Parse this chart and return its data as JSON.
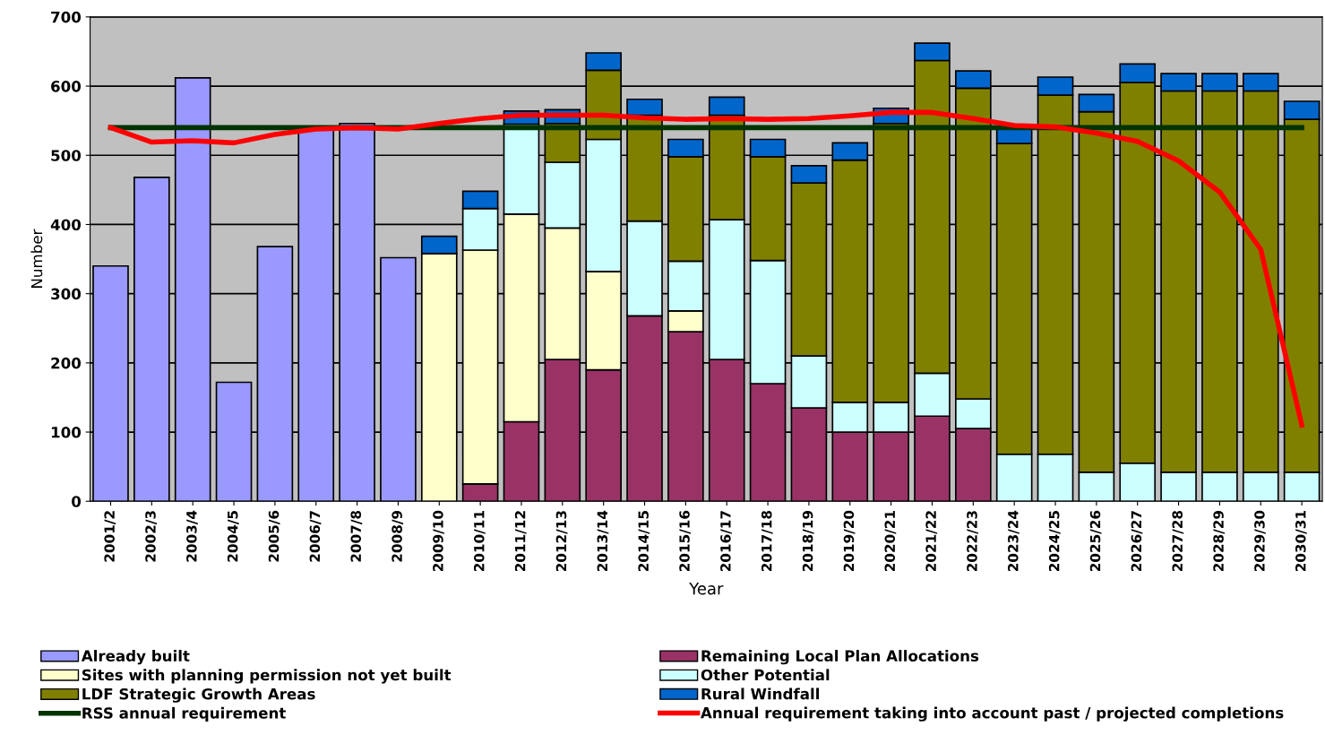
{
  "chart_data": {
    "type": "bar",
    "stacked": true,
    "xlabel": "Year",
    "ylabel": "Number",
    "categories": [
      "2001/2",
      "2002/3",
      "2003/4",
      "2004/5",
      "2005/6",
      "2006/7",
      "2007/8",
      "2008/9",
      "2009/10",
      "2010/11",
      "2011/12",
      "2012/13",
      "2013/14",
      "2014/15",
      "2015/16",
      "2016/17",
      "2017/18",
      "2018/19",
      "2019/20",
      "2020/21",
      "2021/22",
      "2022/23",
      "2023/24",
      "2024/25",
      "2025/26",
      "2026/27",
      "2027/28",
      "2028/29",
      "2029/30",
      "2030/31"
    ],
    "series": [
      {
        "name": "Already built",
        "color": "#9999ff",
        "values": [
          340,
          468,
          612,
          172,
          368,
          539,
          546,
          352,
          null,
          null,
          null,
          null,
          null,
          null,
          null,
          null,
          null,
          null,
          null,
          null,
          null,
          null,
          null,
          null,
          null,
          null,
          null,
          null,
          null,
          null
        ]
      },
      {
        "name": "Remaining Local Plan Allocations",
        "color": "#993366",
        "values": [
          null,
          null,
          null,
          null,
          null,
          null,
          null,
          null,
          null,
          25,
          115,
          205,
          190,
          268,
          245,
          205,
          170,
          135,
          100,
          100,
          123,
          105,
          null,
          null,
          null,
          null,
          null,
          null,
          null,
          null
        ]
      },
      {
        "name": "Sites with planning permission not yet built",
        "color": "#ffffcc",
        "values": [
          null,
          null,
          null,
          null,
          null,
          null,
          null,
          null,
          358,
          338,
          300,
          190,
          142,
          null,
          30,
          null,
          null,
          null,
          null,
          null,
          null,
          null,
          null,
          null,
          null,
          null,
          null,
          null,
          null,
          null
        ]
      },
      {
        "name": "Other Potential",
        "color": "#ccffff",
        "values": [
          null,
          null,
          null,
          null,
          null,
          null,
          null,
          null,
          null,
          60,
          130,
          95,
          191,
          137,
          72,
          202,
          178,
          75,
          43,
          43,
          62,
          43,
          68,
          68,
          42,
          55,
          42,
          42,
          42,
          42
        ]
      },
      {
        "name": "LDF Strategic Growth Areas",
        "color": "#808000",
        "values": [
          null,
          null,
          null,
          null,
          null,
          null,
          null,
          null,
          null,
          null,
          null,
          56,
          100,
          153,
          151,
          151,
          150,
          250,
          350,
          403,
          452,
          449,
          449,
          519,
          521,
          550,
          551,
          551,
          551,
          510
        ]
      },
      {
        "name": "Rural Windfall",
        "color": "#0066cc",
        "values": [
          null,
          null,
          null,
          null,
          null,
          null,
          null,
          null,
          25,
          25,
          19,
          20,
          25,
          23,
          25,
          26,
          25,
          25,
          25,
          22,
          25,
          25,
          23,
          26,
          25,
          27,
          25,
          25,
          25,
          26
        ]
      },
      {
        "name": "RSS annual requirement",
        "type": "line",
        "color": "#003300",
        "values": [
          540,
          540,
          540,
          540,
          540,
          540,
          540,
          540,
          540,
          540,
          540,
          540,
          540,
          540,
          540,
          540,
          540,
          540,
          540,
          540,
          540,
          540,
          540,
          540,
          540,
          540,
          540,
          540,
          540,
          540
        ]
      },
      {
        "name": "Annual requirement taking into account past / projected completions",
        "type": "line",
        "color": "#ff0000",
        "values": [
          540,
          519,
          521,
          518,
          530,
          538,
          540,
          538,
          546,
          553,
          558,
          558,
          558,
          554,
          552,
          553,
          552,
          553,
          557,
          562,
          562,
          553,
          543,
          541,
          532,
          520,
          492,
          447,
          364,
          110
        ]
      }
    ],
    "ylim": [
      0,
      700
    ],
    "yticks": [
      0,
      100,
      200,
      300,
      400,
      500,
      600,
      700
    ],
    "grid": "y",
    "legend": "bottom"
  }
}
